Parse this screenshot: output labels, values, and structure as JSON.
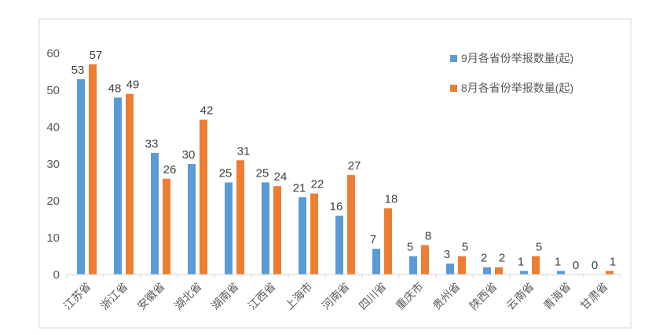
{
  "chart_data": {
    "type": "bar",
    "title": "",
    "xlabel": "",
    "ylabel": "",
    "ylim": [
      0,
      60
    ],
    "yticks": [
      0,
      10,
      20,
      30,
      40,
      50,
      60
    ],
    "grid": false,
    "legend_position": "top-right",
    "categories": [
      "江苏省",
      "浙江省",
      "安徽省",
      "湖北省",
      "湖南省",
      "江西省",
      "上海市",
      "河南省",
      "四川省",
      "重庆市",
      "贵州省",
      "陕西省",
      "云南省",
      "青海省",
      "甘肃省"
    ],
    "series": [
      {
        "name": "9月各省份举报数量(起)",
        "color": "#5B9BD5",
        "values": [
          53,
          48,
          33,
          30,
          25,
          25,
          21,
          16,
          7,
          5,
          3,
          2,
          1,
          1,
          0
        ]
      },
      {
        "name": "8月各省份举报数量(起)",
        "color": "#ED7D31",
        "values": [
          57,
          49,
          26,
          42,
          31,
          24,
          22,
          27,
          18,
          8,
          5,
          2,
          5,
          0,
          1
        ]
      }
    ]
  }
}
